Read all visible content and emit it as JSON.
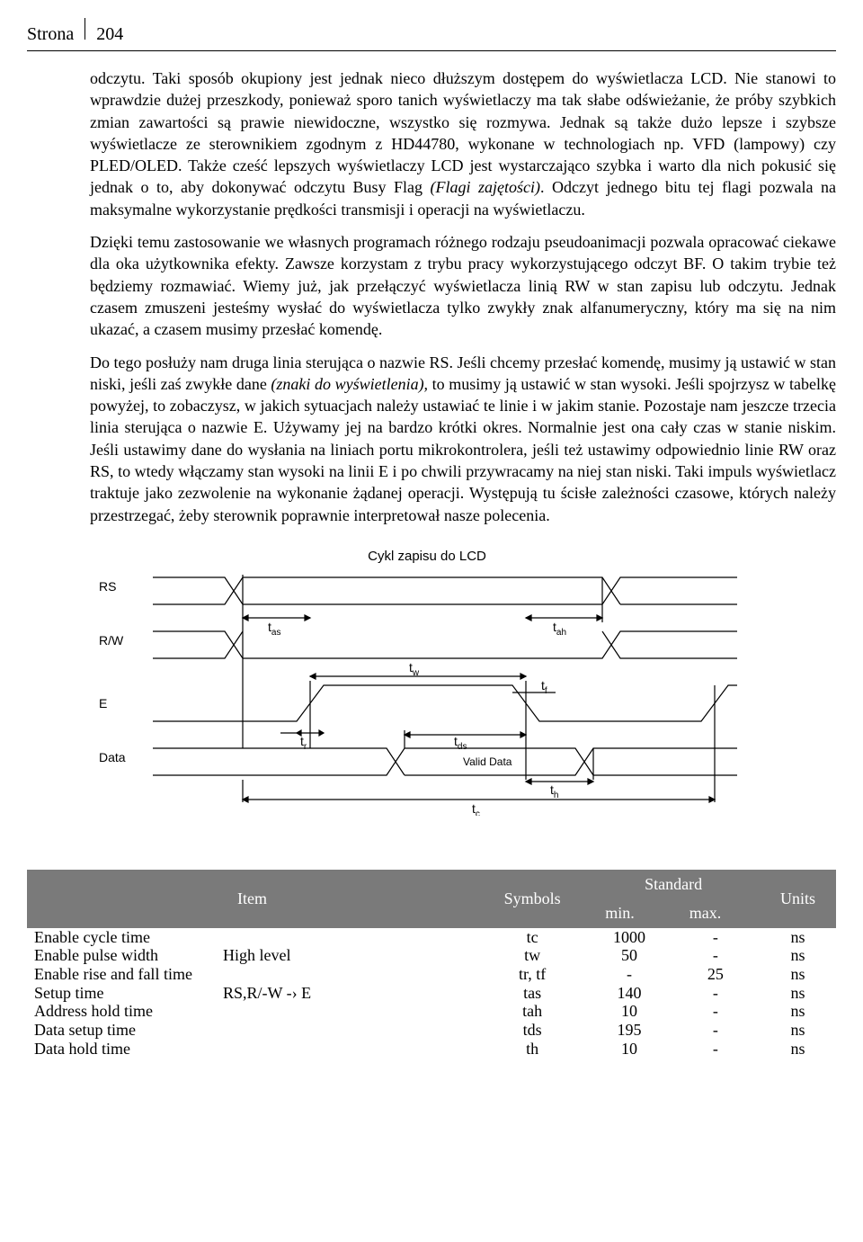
{
  "page_header": {
    "label": "Strona",
    "number": "204"
  },
  "paragraphs": {
    "p1": "odczytu. Taki sposób okupiony jest jednak nieco dłuższym dostępem do wyświetlacza LCD. Nie stanowi to wprawdzie dużej przeszkody, ponieważ sporo tanich wyświetlaczy ma tak słabe odświeżanie, że próby szybkich zmian zawartości są prawie niewidoczne, wszystko się rozmywa. Jednak są także dużo lepsze i szybsze wyświetlacze ze sterownikiem zgodnym z HD44780, wykonane w technologiach np. VFD (lampowy) czy PLED/OLED. Także cześć lepszych wyświetlaczy LCD jest wystarczająco szybka i warto dla nich pokusić się jednak o to, aby dokonywać odczytu Busy Flag ",
    "p1_italic": "(Flagi zajętości)",
    "p1_tail": ". Odczyt jednego bitu tej flagi pozwala na maksymalne wykorzystanie prędkości transmisji i operacji na wyświetlaczu.",
    "p2": "Dzięki temu zastosowanie we własnych programach różnego rodzaju pseudoanimacji pozwala opracować ciekawe dla oka użytkownika efekty. Zawsze korzystam z trybu pracy wykorzystującego odczyt BF. O takim trybie też będziemy rozmawiać. Wiemy już, jak przełączyć wyświetlacza linią RW w stan zapisu lub odczytu. Jednak czasem zmuszeni jesteśmy wysłać do wyświetlacza tylko zwykły znak alfanumeryczny, który ma się na nim ukazać, a czasem musimy przesłać komendę.",
    "p3_a": "Do tego posłuży nam druga linia sterująca o nazwie RS. Jeśli chcemy przesłać komendę, musimy ją ustawić w stan niski, jeśli zaś zwykłe dane ",
    "p3_italic": "(znaki do wyświetlenia),",
    "p3_b": " to musimy ją ustawić w stan wysoki. Jeśli spojrzysz w tabelkę powyżej, to zobaczysz, w jakich sytuacjach należy ustawiać te linie i w jakim stanie. Pozostaje nam jeszcze trzecia linia sterująca o nazwie E. Używamy jej na bardzo krótki okres. Normalnie jest ona cały czas w stanie niskim. Jeśli ustawimy dane do wysłania na liniach portu mikrokontrolera, jeśli też ustawimy odpowiednio linie RW oraz RS, to wtedy włączamy stan wysoki na linii E i po chwili przywracamy na niej stan niski. Taki impuls wyświetlacz traktuje jako zezwolenie na wykonanie żądanej operacji. Występują tu ścisłe zależności czasowe, których należy przestrzegać, żeby sterownik poprawnie interpretował nasze polecenia."
  },
  "diagram": {
    "title": "Cykl zapisu do LCD",
    "signals": {
      "rs": "RS",
      "rw": "R/W",
      "e": "E",
      "data": "Data"
    },
    "labels": {
      "tas": "t",
      "tas_sub": "as",
      "tah": "t",
      "tah_sub": "ah",
      "tw": "t",
      "tw_sub": "w",
      "tr": "t",
      "tr_sub": "r",
      "tf": "t",
      "tf_sub": "f",
      "tds": "t",
      "tds_sub": "ds",
      "th": "t",
      "th_sub": "h",
      "tc": "t",
      "tc_sub": "c"
    },
    "valid": "Valid Data",
    "stroke": "#000000",
    "stroke_width": 1.2,
    "font_family": "Arial, sans-serif",
    "title_size": 15,
    "label_size": 14,
    "sub_size": 10
  },
  "table": {
    "headers": {
      "item": "Item",
      "symbols": "Symbols",
      "standard": "Standard",
      "min": "min.",
      "max": "max.",
      "units": "Units"
    },
    "header_bg": "#7a7a7a",
    "header_fg": "#ffffff",
    "rows": [
      {
        "item": "Enable cycle time",
        "sub": "",
        "sym": "tc",
        "min": "1000",
        "max": "-",
        "units": "ns"
      },
      {
        "item": "Enable pulse width",
        "sub": "High level",
        "sym": "tw",
        "min": "50",
        "max": "-",
        "units": "ns"
      },
      {
        "item": "Enable rise and fall time",
        "sub": "",
        "sym": "tr, tf",
        "min": "-",
        "max": "25",
        "units": "ns"
      },
      {
        "item": "Setup time",
        "sub": "RS,R/-W -› E",
        "sym": "tas",
        "min": "140",
        "max": "-",
        "units": "ns"
      },
      {
        "item": "Address hold time",
        "sub": "",
        "sym": "tah",
        "min": "10",
        "max": "-",
        "units": "ns"
      },
      {
        "item": "Data setup time",
        "sub": "",
        "sym": "tds",
        "min": "195",
        "max": "-",
        "units": "ns"
      },
      {
        "item": "Data hold time",
        "sub": "",
        "sym": "th",
        "min": "10",
        "max": "-",
        "units": "ns"
      }
    ]
  }
}
